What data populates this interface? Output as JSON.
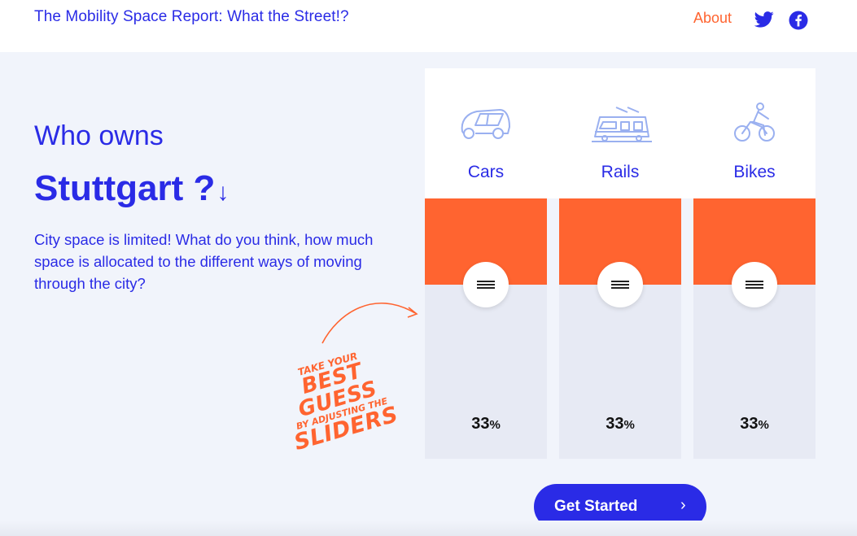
{
  "header": {
    "title": "The Mobility Space Report: What the Street!?",
    "about_label": "About",
    "social": [
      {
        "name": "twitter-icon"
      },
      {
        "name": "facebook-icon"
      }
    ]
  },
  "intro": {
    "heading_line1": "Who owns",
    "heading_city": "Stuttgart ?",
    "heading_arrow": "↓",
    "body": "City space is limited! What do you think, how much space is allocated to the different ways of moving through the city?"
  },
  "hint": {
    "line1": "TAKE YOUR",
    "line2": "BEST GUESS",
    "line3": "BY ADJUSTING THE",
    "line4": "SLIDERS"
  },
  "modes": [
    {
      "label": "Cars",
      "icon": "car-icon",
      "value": "33",
      "unit": "%",
      "fill_fraction": 0.33
    },
    {
      "label": "Rails",
      "icon": "tram-icon",
      "value": "33",
      "unit": "%",
      "fill_fraction": 0.33
    },
    {
      "label": "Bikes",
      "icon": "bike-icon",
      "value": "33",
      "unit": "%",
      "fill_fraction": 0.33
    }
  ],
  "cta": {
    "label": "Get Started",
    "chevron": "›"
  },
  "colors": {
    "primary": "#2a2be6",
    "accent": "#ff6430",
    "track": "#e7eaf4",
    "background": "#f1f4fb"
  }
}
